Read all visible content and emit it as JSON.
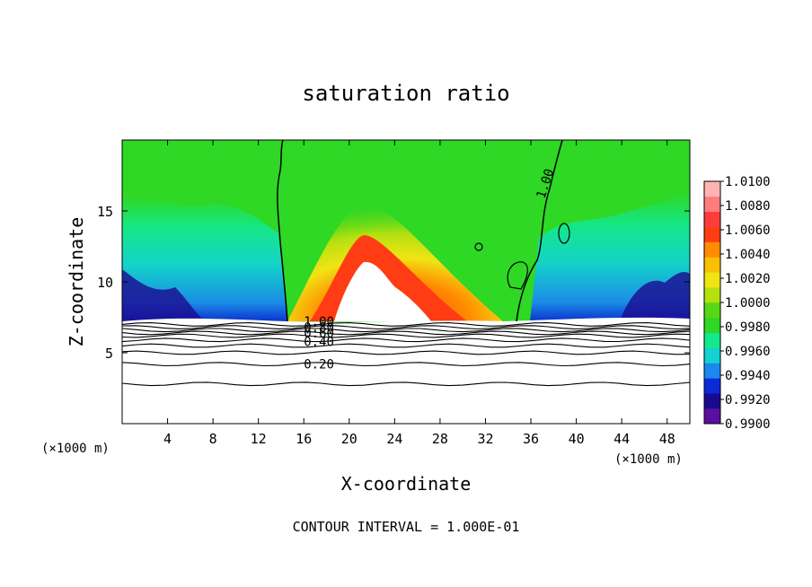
{
  "chart_data": {
    "type": "heatmap",
    "title": "saturation ratio",
    "xlabel": "X-coordinate",
    "ylabel": "Z-coordinate",
    "x_unit": "(×1000 m)",
    "x_unit_right": "(×1000 m)",
    "footer": "CONTOUR INTERVAL = 1.000E-01",
    "xlim": [
      0,
      50
    ],
    "ylim": [
      0,
      20
    ],
    "x_ticks": [
      4,
      8,
      12,
      16,
      20,
      24,
      28,
      32,
      36,
      40,
      44,
      48
    ],
    "y_ticks": [
      5,
      10,
      15
    ],
    "colorbar": {
      "labels": [
        "1.0100",
        "1.0080",
        "1.0060",
        "1.0040",
        "1.0020",
        "1.0000",
        "0.9980",
        "0.9960",
        "0.9940",
        "0.9920",
        "0.9900"
      ],
      "min": 0.99,
      "max": 1.01,
      "colors": [
        "#5a0fa0",
        "#1a0a90",
        "#0a2ad8",
        "#1a88f0",
        "#12d2d2",
        "#14e88c",
        "#2ed824",
        "#56d814",
        "#b4e010",
        "#f0e414",
        "#f8c000",
        "#ff8c00",
        "#ff3c14",
        "#ff3c3c",
        "#ff7c7c",
        "#ffb4b4"
      ]
    },
    "contour_lines": [
      {
        "label": "1.00",
        "z": 7.2
      },
      {
        "label": "0.80",
        "z": 6.8
      },
      {
        "label": "0.60",
        "z": 6.4
      },
      {
        "label": "0.40",
        "z": 5.8
      },
      {
        "label": "0.20",
        "z": 4.2
      }
    ],
    "annotations": [
      "1.00"
    ]
  }
}
